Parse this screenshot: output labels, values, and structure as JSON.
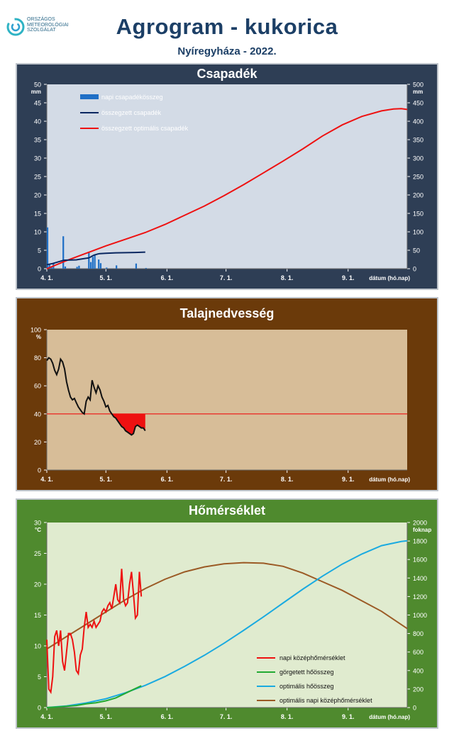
{
  "header": {
    "title": "Agrogram - kukorica",
    "subtitle": "Nyíregyháza - 2022.",
    "logo_text": [
      "ORSZÁGOS",
      "METEOROLÓGIAI",
      "SZOLGÁLAT"
    ]
  },
  "x_axis": {
    "label": "dátum (hó.nap)",
    "ticks": [
      "4. 1.",
      "5. 1.",
      "6. 1.",
      "7. 1.",
      "8. 1.",
      "9. 1."
    ],
    "tick_days": [
      0,
      30,
      61,
      91,
      122,
      153
    ],
    "range_days": [
      0,
      183
    ]
  },
  "chart_data": [
    {
      "type": "bar",
      "title": "Csapadék",
      "colors": {
        "frame": "#2e3e55",
        "plot_bg": "#d3dbe6",
        "daily": "#1f6fc6",
        "cumulative": "#0a2760",
        "optimal": "#ee1111"
      },
      "y_left": {
        "unit": "mm",
        "range": [
          0,
          50
        ],
        "ticks": [
          0,
          5,
          10,
          15,
          20,
          25,
          30,
          35,
          40,
          45,
          50
        ]
      },
      "y_right": {
        "unit": "mm",
        "range": [
          0,
          500
        ],
        "ticks": [
          0,
          50,
          100,
          150,
          200,
          250,
          300,
          350,
          400,
          450,
          500
        ]
      },
      "legend": [
        "napi csapadékösszeg",
        "összegzett csapadék",
        "összegzett optimális  csapadék"
      ],
      "series": [
        {
          "name": "napi csapadékösszeg",
          "axis": "left",
          "points": [
            [
              0,
              11.2
            ],
            [
              1,
              1.2
            ],
            [
              2,
              0.4
            ],
            [
              3,
              1.6
            ],
            [
              8,
              8.8
            ],
            [
              9,
              0.6
            ],
            [
              15,
              0.5
            ],
            [
              16,
              0.8
            ],
            [
              21,
              4.5
            ],
            [
              22,
              1.8
            ],
            [
              23,
              3.2
            ],
            [
              24,
              3.8
            ],
            [
              26,
              2.5
            ],
            [
              27,
              1.5
            ],
            [
              30,
              0.3
            ],
            [
              35,
              0.9
            ],
            [
              45,
              1.4
            ],
            [
              50,
              0.2
            ]
          ]
        },
        {
          "name": "összegzett csapadék",
          "axis": "right",
          "points": [
            [
              0,
              11
            ],
            [
              1,
              12
            ],
            [
              3,
              14
            ],
            [
              8,
              22
            ],
            [
              9,
              23
            ],
            [
              15,
              24
            ],
            [
              16,
              25
            ],
            [
              21,
              29
            ],
            [
              22,
              31
            ],
            [
              23,
              34
            ],
            [
              24,
              37
            ],
            [
              26,
              40
            ],
            [
              27,
              41
            ],
            [
              30,
              42
            ],
            [
              35,
              43
            ],
            [
              45,
              44
            ],
            [
              50,
              45
            ]
          ]
        },
        {
          "name": "összegzett optimális  csapadék",
          "axis": "right",
          "points": [
            [
              0,
              0
            ],
            [
              10,
              22
            ],
            [
              20,
              42
            ],
            [
              30,
              62
            ],
            [
              40,
              80
            ],
            [
              50,
              98
            ],
            [
              60,
              120
            ],
            [
              70,
              145
            ],
            [
              80,
              170
            ],
            [
              90,
              198
            ],
            [
              100,
              228
            ],
            [
              110,
              260
            ],
            [
              120,
              292
            ],
            [
              130,
              325
            ],
            [
              140,
              360
            ],
            [
              150,
              390
            ],
            [
              160,
              413
            ],
            [
              170,
              428
            ],
            [
              176,
              433
            ],
            [
              180,
              434
            ],
            [
              183,
              432
            ]
          ]
        }
      ]
    },
    {
      "type": "area",
      "title": "Talajnedvesség",
      "colors": {
        "frame": "#6b3a0a",
        "plot_bg": "#d7bd98",
        "line": "#111111",
        "threshold": "#ee1111",
        "deficit": "#ee1111"
      },
      "y": {
        "unit": "%",
        "range": [
          0,
          100
        ],
        "ticks": [
          0,
          20,
          40,
          60,
          80,
          100
        ]
      },
      "threshold": 40,
      "series": [
        {
          "name": "talajnedvesség",
          "points": [
            [
              0,
              78
            ],
            [
              1,
              80
            ],
            [
              2,
              79
            ],
            [
              3,
              76
            ],
            [
              4,
              71
            ],
            [
              5,
              68
            ],
            [
              6,
              72
            ],
            [
              7,
              79
            ],
            [
              8,
              77
            ],
            [
              9,
              72
            ],
            [
              10,
              63
            ],
            [
              11,
              57
            ],
            [
              12,
              52
            ],
            [
              13,
              50
            ],
            [
              14,
              51
            ],
            [
              15,
              48
            ],
            [
              16,
              45
            ],
            [
              17,
              43
            ],
            [
              18,
              41
            ],
            [
              19,
              40
            ],
            [
              20,
              49
            ],
            [
              21,
              52
            ],
            [
              22,
              50
            ],
            [
              23,
              64
            ],
            [
              24,
              59
            ],
            [
              25,
              55
            ],
            [
              26,
              60
            ],
            [
              27,
              57
            ],
            [
              28,
              52
            ],
            [
              29,
              49
            ],
            [
              30,
              45
            ],
            [
              31,
              46
            ],
            [
              32,
              42
            ],
            [
              33,
              40
            ],
            [
              34,
              38
            ],
            [
              35,
              37
            ],
            [
              36,
              35
            ],
            [
              37,
              33
            ],
            [
              38,
              31
            ],
            [
              39,
              30
            ],
            [
              40,
              28
            ],
            [
              41,
              27
            ],
            [
              42,
              26
            ],
            [
              43,
              25
            ],
            [
              44,
              26
            ],
            [
              45,
              31
            ],
            [
              46,
              32
            ],
            [
              47,
              31
            ],
            [
              48,
              30
            ],
            [
              49,
              30
            ],
            [
              50,
              28
            ]
          ]
        }
      ]
    },
    {
      "type": "line",
      "title": "Hőmérséklet",
      "colors": {
        "frame": "#4f8a2e",
        "plot_bg": "#e0ebcf",
        "daily": "#ee1111",
        "rolling": "#22aa33",
        "optimal_sum": "#1aaae0",
        "optimal_daily": "#9b5a25"
      },
      "y_left": {
        "unit": "°C",
        "range": [
          0,
          30
        ],
        "ticks": [
          0,
          5,
          10,
          15,
          20,
          25,
          30
        ]
      },
      "y_right": {
        "unit": "foknap",
        "range": [
          0,
          2000
        ],
        "ticks": [
          0,
          200,
          400,
          600,
          800,
          1000,
          1200,
          1400,
          1600,
          1800,
          2000
        ]
      },
      "legend": [
        "napi középhőmérséklet",
        "görgetett hőösszeg",
        "optimális hőösszeg",
        "optimális napi középhőmérséklet"
      ],
      "series": [
        {
          "name": "napi középhőmérséklet",
          "axis": "left",
          "points": [
            [
              0,
              11
            ],
            [
              1,
              3
            ],
            [
              2,
              2.5
            ],
            [
              3,
              5
            ],
            [
              4,
              11.5
            ],
            [
              5,
              12.5
            ],
            [
              6,
              10
            ],
            [
              7,
              12.5
            ],
            [
              8,
              7.5
            ],
            [
              9,
              6
            ],
            [
              10,
              9
            ],
            [
              11,
              12
            ],
            [
              12,
              12
            ],
            [
              13,
              11
            ],
            [
              14,
              9
            ],
            [
              15,
              6
            ],
            [
              16,
              5.5
            ],
            [
              17,
              8.5
            ],
            [
              18,
              9.5
            ],
            [
              19,
              13
            ],
            [
              20,
              15.5
            ],
            [
              21,
              13
            ],
            [
              22,
              13.5
            ],
            [
              23,
              13
            ],
            [
              24,
              14
            ],
            [
              25,
              13
            ],
            [
              26,
              13.5
            ],
            [
              27,
              14
            ],
            [
              28,
              15.5
            ],
            [
              29,
              16
            ],
            [
              30,
              15.5
            ],
            [
              31,
              16.5
            ],
            [
              32,
              17
            ],
            [
              33,
              16
            ],
            [
              34,
              18
            ],
            [
              35,
              20
            ],
            [
              36,
              17.5
            ],
            [
              37,
              17
            ],
            [
              38,
              22.5
            ],
            [
              39,
              17.5
            ],
            [
              40,
              16.5
            ],
            [
              41,
              17
            ],
            [
              42,
              20
            ],
            [
              43,
              22
            ],
            [
              44,
              18.5
            ],
            [
              45,
              14.5
            ],
            [
              46,
              15
            ],
            [
              47,
              22
            ],
            [
              48,
              18
            ]
          ]
        },
        {
          "name": "görgetett hőösszeg",
          "axis": "right",
          "points": [
            [
              0,
              0
            ],
            [
              5,
              6
            ],
            [
              10,
              14
            ],
            [
              15,
              22
            ],
            [
              20,
              40
            ],
            [
              25,
              52
            ],
            [
              30,
              73
            ],
            [
              35,
              104
            ],
            [
              40,
              155
            ],
            [
              45,
              205
            ],
            [
              48,
              235
            ]
          ]
        },
        {
          "name": "optimális hőösszeg",
          "axis": "right",
          "points": [
            [
              0,
              0
            ],
            [
              10,
              18
            ],
            [
              20,
              50
            ],
            [
              30,
              95
            ],
            [
              40,
              160
            ],
            [
              50,
              240
            ],
            [
              60,
              335
            ],
            [
              70,
              445
            ],
            [
              80,
              565
            ],
            [
              90,
              695
            ],
            [
              100,
              835
            ],
            [
              110,
              980
            ],
            [
              120,
              1130
            ],
            [
              130,
              1280
            ],
            [
              140,
              1420
            ],
            [
              150,
              1550
            ],
            [
              160,
              1660
            ],
            [
              170,
              1750
            ],
            [
              180,
              1795
            ],
            [
              183,
              1802
            ]
          ]
        },
        {
          "name": "optimális napi középhőmérséklet",
          "axis": "left",
          "points": [
            [
              0,
              9.5
            ],
            [
              10,
              11.5
            ],
            [
              20,
              13.5
            ],
            [
              30,
              15.5
            ],
            [
              40,
              17.5
            ],
            [
              50,
              19.3
            ],
            [
              60,
              20.8
            ],
            [
              70,
              22
            ],
            [
              80,
              22.8
            ],
            [
              90,
              23.3
            ],
            [
              100,
              23.5
            ],
            [
              110,
              23.4
            ],
            [
              120,
              22.9
            ],
            [
              130,
              21.8
            ],
            [
              140,
              20.4
            ],
            [
              150,
              19
            ],
            [
              160,
              17.3
            ],
            [
              170,
              15.6
            ],
            [
              183,
              12.8
            ]
          ]
        }
      ]
    }
  ]
}
